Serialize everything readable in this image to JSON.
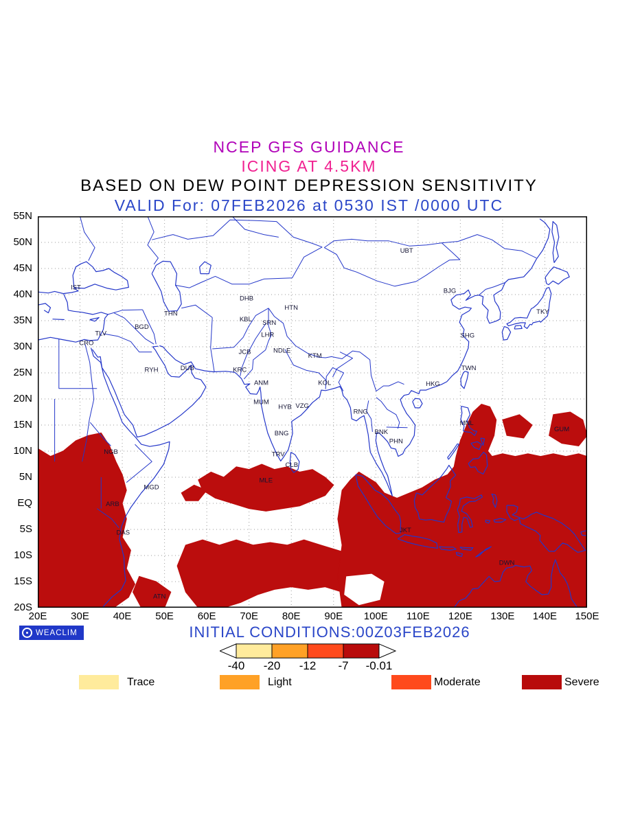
{
  "colors": {
    "title1": "#b000b8",
    "title2": "#f02090",
    "title3": "#000000",
    "title4": "#2a46c8",
    "footer_text": "#2a46c8",
    "badge_bg": "#2038c8",
    "coast": "#2336c9",
    "grid": "#9a9a9a",
    "frame": "#000000",
    "station": "#131333",
    "severe_fill": "#bb0d0d",
    "trace": "#ffeb9c",
    "light": "#ffa126",
    "moderate": "#ff4a1c",
    "severe": "#b80b0b"
  },
  "titles": {
    "line1": "NCEP GFS GUIDANCE",
    "line2": "ICING AT 4.5KM",
    "line3": "BASED ON DEW POINT DEPRESSION SENSITIVITY",
    "line4": "VALID For: 07FEB2026 at 0530 IST /0000 UTC"
  },
  "map": {
    "lat_labels": [
      "55N",
      "50N",
      "45N",
      "40N",
      "35N",
      "30N",
      "25N",
      "20N",
      "15N",
      "10N",
      "5N",
      "EQ",
      "5S",
      "10S",
      "15S",
      "20S"
    ],
    "lon_labels": [
      "20E",
      "30E",
      "40E",
      "50E",
      "60E",
      "70E",
      "80E",
      "90E",
      "100E",
      "110E",
      "120E",
      "130E",
      "140E",
      "150E"
    ],
    "stations": [
      {
        "id": "IST",
        "lon": 29.0,
        "lat": 41.0
      },
      {
        "id": "TLV",
        "lon": 34.9,
        "lat": 32.2
      },
      {
        "id": "CRO",
        "lon": 31.5,
        "lat": 30.3
      },
      {
        "id": "BGD",
        "lon": 44.6,
        "lat": 33.4
      },
      {
        "id": "THN",
        "lon": 51.5,
        "lat": 36.0
      },
      {
        "id": "RYH",
        "lon": 46.9,
        "lat": 25.2
      },
      {
        "id": "DUB",
        "lon": 55.4,
        "lat": 25.5
      },
      {
        "id": "DHB",
        "lon": 69.4,
        "lat": 38.9
      },
      {
        "id": "KBL",
        "lon": 69.2,
        "lat": 34.9
      },
      {
        "id": "SRN",
        "lon": 74.8,
        "lat": 34.2
      },
      {
        "id": "HTN",
        "lon": 80.0,
        "lat": 37.1
      },
      {
        "id": "LHR",
        "lon": 74.4,
        "lat": 31.9
      },
      {
        "id": "JCB",
        "lon": 69.0,
        "lat": 28.6
      },
      {
        "id": "NDLE",
        "lon": 77.8,
        "lat": 28.9
      },
      {
        "id": "KTM",
        "lon": 85.6,
        "lat": 27.9
      },
      {
        "id": "KRC",
        "lon": 67.8,
        "lat": 25.2
      },
      {
        "id": "ANM",
        "lon": 72.9,
        "lat": 22.7
      },
      {
        "id": "MUM",
        "lon": 72.9,
        "lat": 19.0
      },
      {
        "id": "KOL",
        "lon": 87.9,
        "lat": 22.7
      },
      {
        "id": "HYB",
        "lon": 78.5,
        "lat": 18.1
      },
      {
        "id": "VZG",
        "lon": 82.6,
        "lat": 18.3
      },
      {
        "id": "BNG",
        "lon": 77.7,
        "lat": 13.0
      },
      {
        "id": "TRV",
        "lon": 76.9,
        "lat": 9.0
      },
      {
        "id": "CLB",
        "lon": 80.1,
        "lat": 7.0
      },
      {
        "id": "MLE",
        "lon": 74.0,
        "lat": 4.0
      },
      {
        "id": "RNG",
        "lon": 96.4,
        "lat": 17.2
      },
      {
        "id": "BNK",
        "lon": 101.3,
        "lat": 13.3
      },
      {
        "id": "PHN",
        "lon": 104.8,
        "lat": 11.5
      },
      {
        "id": "HKG",
        "lon": 113.5,
        "lat": 22.5
      },
      {
        "id": "TWN",
        "lon": 122.0,
        "lat": 25.5
      },
      {
        "id": "SHG",
        "lon": 121.7,
        "lat": 31.8
      },
      {
        "id": "BJG",
        "lon": 117.5,
        "lat": 40.3
      },
      {
        "id": "UBT",
        "lon": 107.3,
        "lat": 48.0
      },
      {
        "id": "TKY",
        "lon": 139.5,
        "lat": 36.3
      },
      {
        "id": "MNL",
        "lon": 121.5,
        "lat": 15.0
      },
      {
        "id": "GUM",
        "lon": 144.0,
        "lat": 13.8
      },
      {
        "id": "NGB",
        "lon": 37.3,
        "lat": 9.5
      },
      {
        "id": "MGD",
        "lon": 46.9,
        "lat": 2.7
      },
      {
        "id": "ARB",
        "lon": 37.7,
        "lat": -0.5
      },
      {
        "id": "DAS",
        "lon": 40.2,
        "lat": -6.0
      },
      {
        "id": "ATN",
        "lon": 48.8,
        "lat": -18.2
      },
      {
        "id": "JKT",
        "lon": 107.0,
        "lat": -5.5
      },
      {
        "id": "DWN",
        "lon": 131.0,
        "lat": -11.8
      }
    ]
  },
  "footer": {
    "logo_text": "WEACLIM",
    "initial_conditions": "INITIAL CONDITIONS:00Z03FEB2026"
  },
  "colorbar": {
    "values": [
      "-40",
      "-20",
      "-12",
      "-7",
      "-0.01"
    ],
    "segments": [
      "trace",
      "light",
      "moderate",
      "severe"
    ]
  },
  "legend": {
    "items": [
      {
        "label": "Trace",
        "color_key": "trace"
      },
      {
        "label": "Light",
        "color_key": "light"
      },
      {
        "label": "Moderate",
        "color_key": "moderate"
      },
      {
        "label": "Severe",
        "color_key": "severe"
      }
    ]
  }
}
